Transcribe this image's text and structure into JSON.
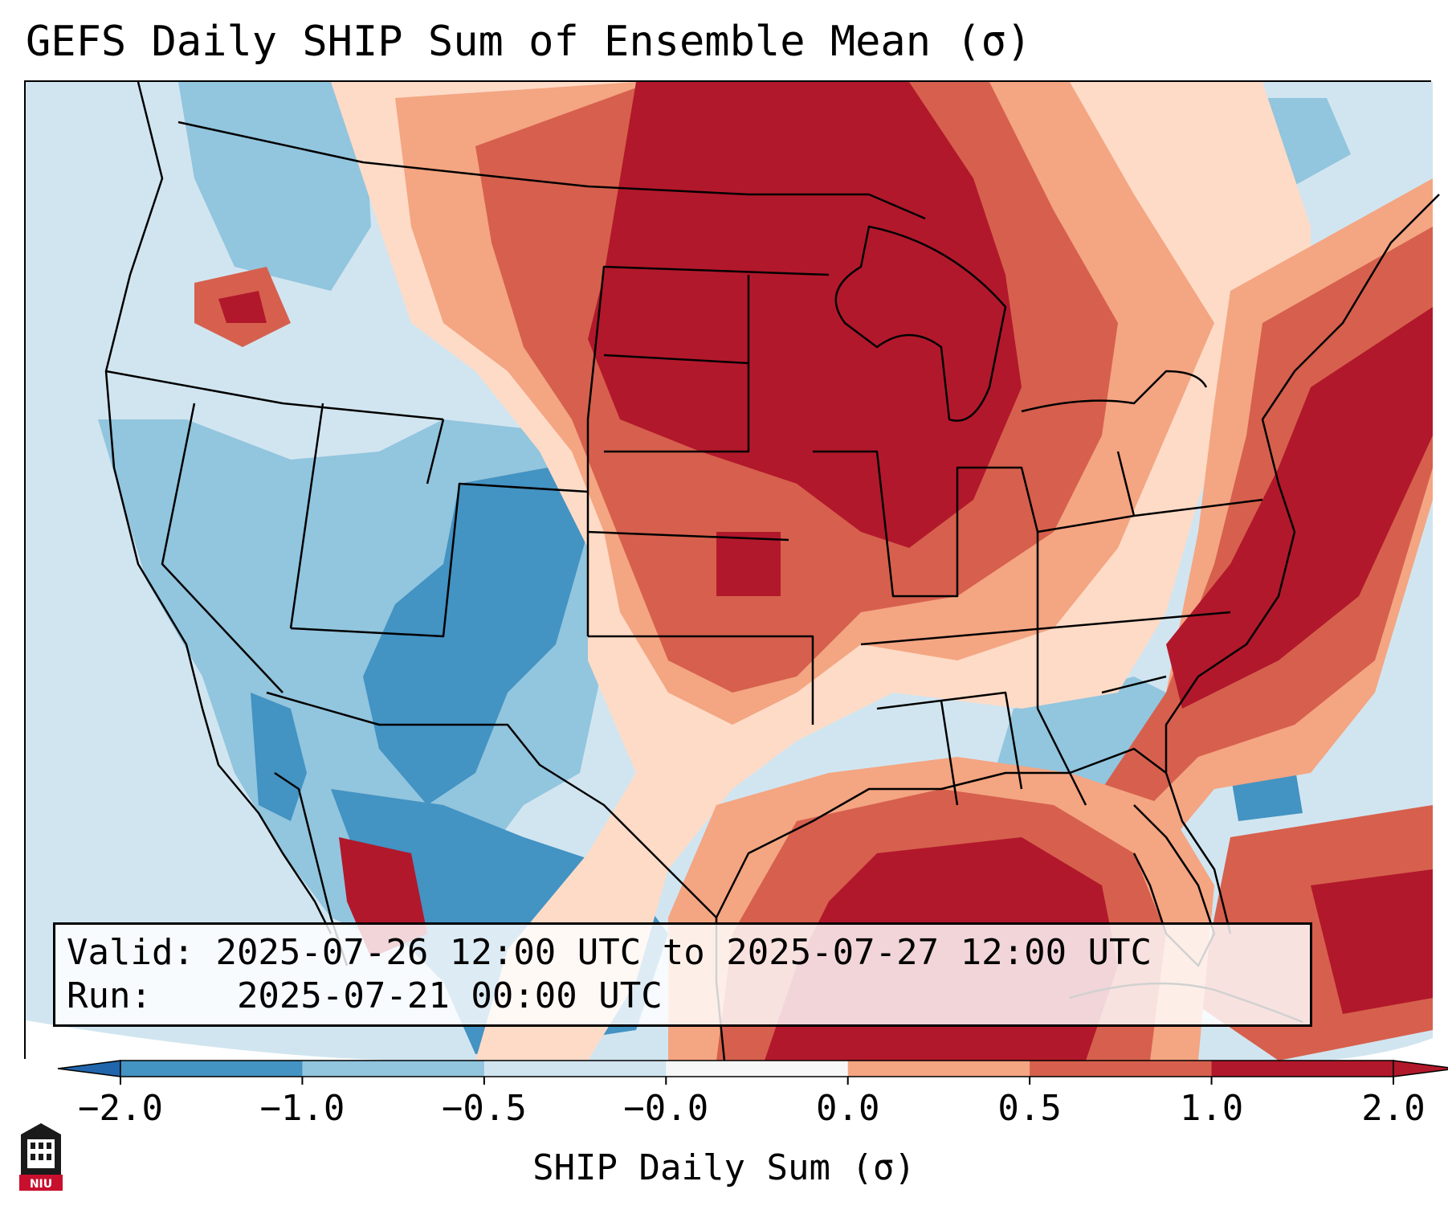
{
  "title": "GEFS Daily SHIP Sum of Ensemble Mean (σ)",
  "info": {
    "valid_label": "Valid:",
    "valid_value": "2025-07-26 12:00 UTC to 2025-07-27 12:00 UTC",
    "run_label": "Run:",
    "run_value": "2025-07-21 00:00 UTC"
  },
  "colorbar": {
    "label": "SHIP Daily Sum (σ)",
    "ticks": [
      "−2.0",
      "−1.0",
      "−0.5",
      "−0.0",
      "0.0",
      "0.5",
      "1.0",
      "2.0"
    ],
    "colors": [
      "#4393c3",
      "#92c5de",
      "#d1e5f0",
      "#f7f7f7",
      "#fddbc7",
      "#f4a582",
      "#d6604d",
      "#b2182b"
    ],
    "extend_low_color": "#2166ac",
    "extend_high_color": "#b2182b"
  },
  "logo": {
    "text": "NIU",
    "color": "#c8102e",
    "icon": "university-logo-icon"
  }
}
